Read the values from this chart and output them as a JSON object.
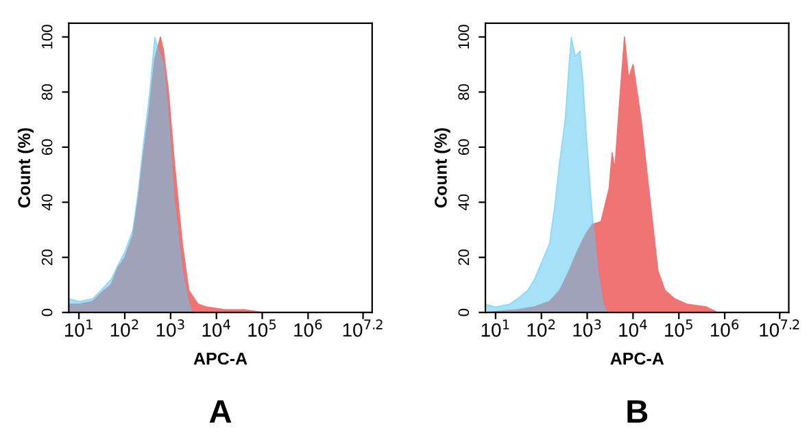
{
  "chart_data": [
    {
      "type": "area",
      "title": "A",
      "xlabel": "APC-A",
      "ylabel": "Count (%)",
      "log": "x",
      "xlim": [
        6,
        25000000
      ],
      "ylim": [
        0,
        105
      ],
      "yticks": [
        0,
        20,
        40,
        60,
        80,
        100
      ],
      "xticks": [
        {
          "value": 10,
          "label": "10$^{1}$"
        },
        {
          "value": 100,
          "label": "10$^{2}$"
        },
        {
          "value": 1000,
          "label": "10$^{3}$"
        },
        {
          "value": 10000,
          "label": "10$^{4}$"
        },
        {
          "value": 100000,
          "label": "10$^{5}$"
        },
        {
          "value": 1000000,
          "label": "10$^{6}$"
        },
        {
          "value": 15848932,
          "label": "10$^{7.2}$"
        }
      ],
      "grid": false,
      "series": [
        {
          "color": "#f07474",
          "x": [
            6,
            10,
            20,
            30,
            50,
            70,
            100,
            150,
            200,
            250,
            350,
            450,
            600,
            700,
            900,
            1200,
            1800,
            2500,
            4000,
            6000,
            15000,
            40000,
            100000
          ],
          "values": [
            3,
            3,
            4,
            7,
            10,
            16,
            20,
            28,
            42,
            56,
            75,
            92,
            100,
            95,
            80,
            55,
            25,
            8,
            3,
            2,
            1,
            1,
            0
          ]
        },
        {
          "color": "#5cc8f0",
          "x": [
            6,
            10,
            20,
            30,
            50,
            70,
            100,
            150,
            200,
            250,
            350,
            450,
            550,
            700,
            900,
            1200,
            1800,
            2500,
            3000
          ],
          "values": [
            5,
            4,
            5,
            8,
            12,
            17,
            22,
            30,
            45,
            60,
            80,
            100,
            95,
            90,
            70,
            40,
            15,
            3,
            0
          ]
        }
      ]
    },
    {
      "type": "area",
      "title": "B",
      "xlabel": "APC-A",
      "ylabel": "Count (%)",
      "log": "x",
      "xlim": [
        6,
        25000000
      ],
      "ylim": [
        0,
        105
      ],
      "yticks": [
        0,
        20,
        40,
        60,
        80,
        100
      ],
      "xticks": [
        {
          "value": 10,
          "label": "10$^{1}$"
        },
        {
          "value": 100,
          "label": "10$^{2}$"
        },
        {
          "value": 1000,
          "label": "10$^{3}$"
        },
        {
          "value": 10000,
          "label": "10$^{4}$"
        },
        {
          "value": 100000,
          "label": "10$^{5}$"
        },
        {
          "value": 1000000,
          "label": "10$^{6}$"
        },
        {
          "value": 15848932,
          "label": "10$^{7.2}$"
        }
      ],
      "grid": false,
      "series": [
        {
          "color": "#f07474",
          "x": [
            6,
            30,
            70,
            150,
            250,
            400,
            600,
            900,
            1300,
            2000,
            3000,
            3500,
            4000,
            5000,
            6500,
            8000,
            10000,
            15000,
            22000,
            35000,
            50000,
            80000,
            150000,
            400000,
            700000
          ],
          "values": [
            0,
            1,
            2,
            4,
            8,
            15,
            22,
            28,
            32,
            33,
            45,
            58,
            52,
            75,
            100,
            85,
            90,
            70,
            45,
            15,
            8,
            5,
            3,
            2,
            0
          ]
        },
        {
          "color": "#5cc8f0",
          "x": [
            6,
            10,
            20,
            30,
            50,
            70,
            100,
            150,
            200,
            250,
            330,
            400,
            450,
            550,
            700,
            800,
            1000,
            1300,
            1700,
            2200,
            2700
          ],
          "values": [
            3,
            2,
            3,
            5,
            8,
            12,
            18,
            25,
            40,
            55,
            70,
            90,
            100,
            93,
            95,
            85,
            60,
            35,
            15,
            3,
            0
          ]
        }
      ]
    }
  ]
}
